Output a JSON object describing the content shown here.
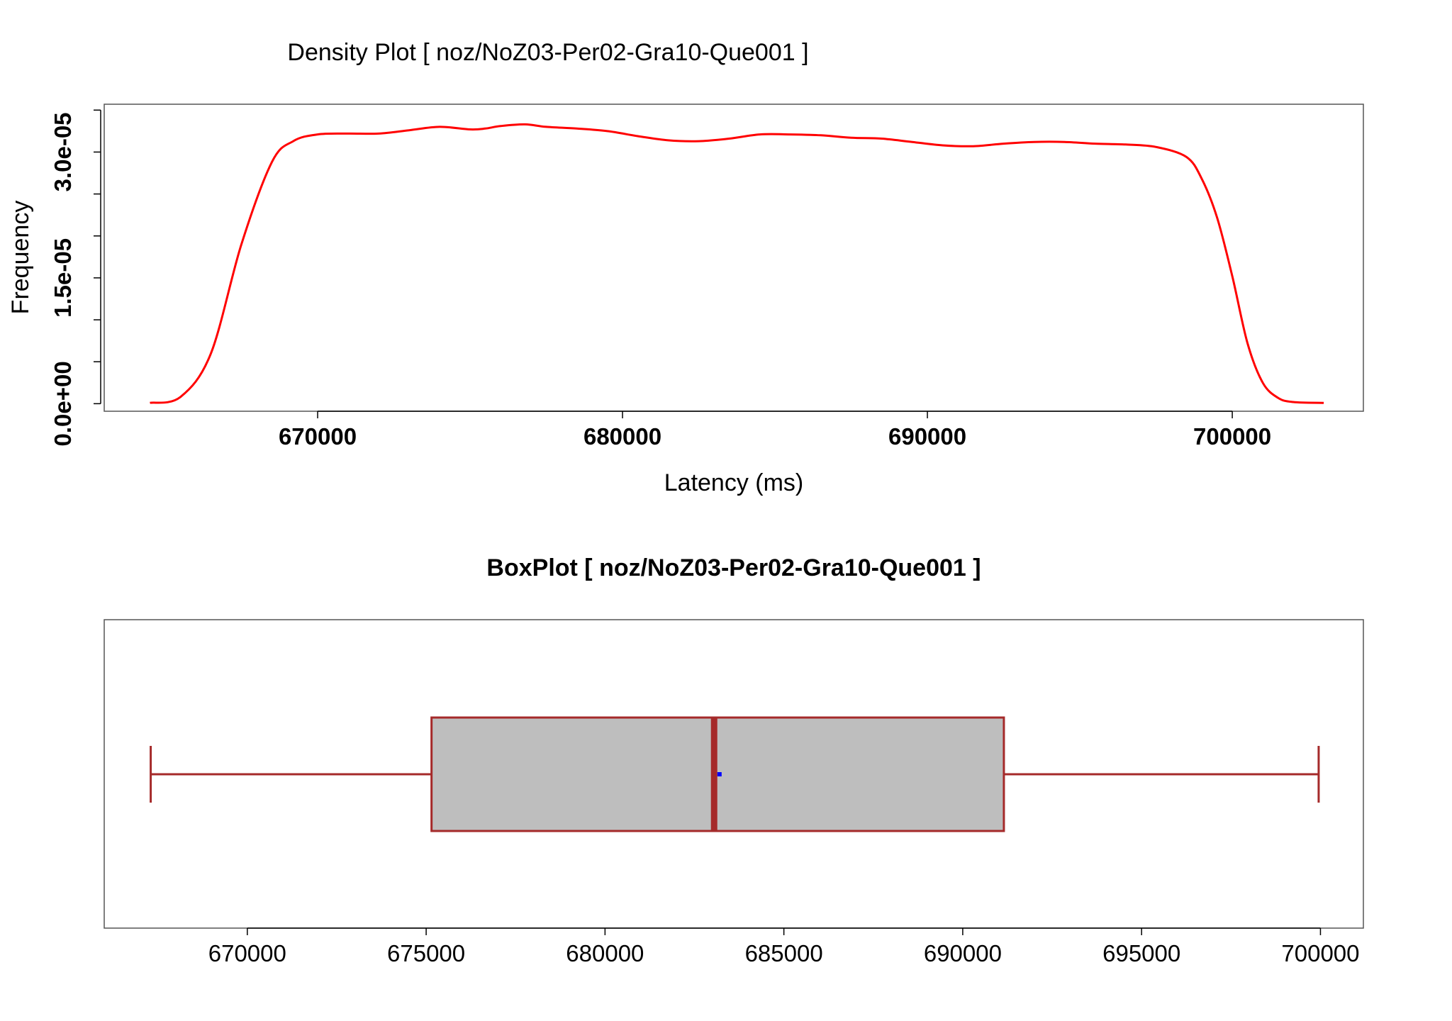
{
  "chart_data": [
    {
      "type": "line",
      "title": "Density Plot [ noz/NoZ03-Per02-Gra10-Que001 ]",
      "xlabel": "Latency (ms)",
      "ylabel": "Frequency",
      "xlim": [
        663000,
        704300
      ],
      "ylim": [
        -9e-07,
        3.57e-05
      ],
      "x_ticks": [
        670000,
        680000,
        690000,
        700000
      ],
      "x_tick_labels": [
        "670000",
        "680000",
        "690000",
        "700000"
      ],
      "y_ticks": [
        0,
        5e-06,
        1e-05,
        1.5e-05,
        2e-05,
        2.5e-05,
        3e-05,
        3.5e-05
      ],
      "y_tick_labels": [
        {
          "value": 0,
          "label": "0.0e+00"
        },
        {
          "value": 1.5e-05,
          "label": "1.5e-05"
        },
        {
          "value": 3e-05,
          "label": "3.0e-05"
        }
      ],
      "grid": false,
      "line_color": "#ff0000",
      "series": [
        {
          "x": [
            664500,
            665500,
            666500,
            667500,
            668500,
            669200,
            670000,
            671000,
            672000,
            673000,
            674000,
            675000,
            675500,
            676000,
            676800,
            677500,
            678500,
            679500,
            680500,
            681500,
            682500,
            683500,
            684500,
            685500,
            686500,
            687500,
            688500,
            689500,
            690500,
            691500,
            692500,
            693500,
            694500,
            695500,
            696500,
            697500,
            698500,
            699000,
            699500,
            700000,
            700500,
            701000,
            701500,
            702000,
            703000
          ],
          "y": [
            1e-07,
            8e-07,
            6e-06,
            1.9e-05,
            2.88e-05,
            3.13e-05,
            3.21e-05,
            3.22e-05,
            3.22e-05,
            3.26e-05,
            3.3e-05,
            3.27e-05,
            3.28e-05,
            3.31e-05,
            3.33e-05,
            3.3e-05,
            3.28e-05,
            3.25e-05,
            3.19e-05,
            3.14e-05,
            3.13e-05,
            3.16e-05,
            3.21e-05,
            3.21e-05,
            3.2e-05,
            3.17e-05,
            3.16e-05,
            3.12e-05,
            3.08e-05,
            3.07e-05,
            3.1e-05,
            3.12e-05,
            3.12e-05,
            3.1e-05,
            3.09e-05,
            3.06e-05,
            2.94e-05,
            2.68e-05,
            2.22e-05,
            1.52e-05,
            7.2e-06,
            2.5e-06,
            7e-07,
            2e-07,
            1e-07
          ]
        }
      ]
    },
    {
      "type": "box",
      "title": "BoxPlot [ noz/NoZ03-Per02-Gra10-Que001 ]",
      "xlabel": "",
      "ylabel": "",
      "xlim": [
        666000,
        701200
      ],
      "x_ticks": [
        670000,
        675000,
        680000,
        685000,
        690000,
        695000,
        700000
      ],
      "x_tick_labels": [
        "670000",
        "675000",
        "680000",
        "685000",
        "690000",
        "695000",
        "700000"
      ],
      "grid": false,
      "box_fill": "#bebebe",
      "box_stroke": "#a52a2a",
      "mean_color": "#0000ff",
      "min": 667300,
      "q1": 675150,
      "median": 683050,
      "mean": 683200,
      "q3": 691150,
      "max": 699950
    }
  ]
}
